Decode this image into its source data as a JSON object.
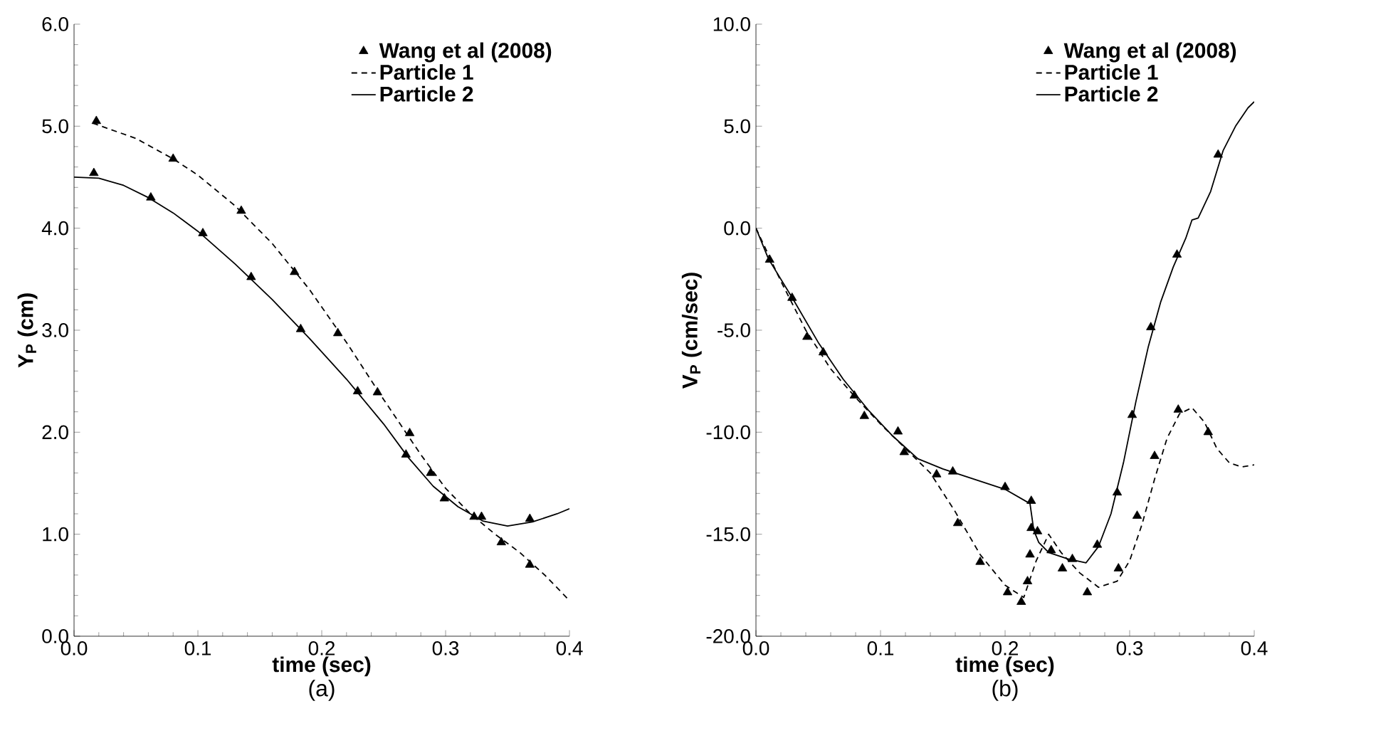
{
  "chart_data": [
    {
      "type": "line",
      "xlabel": "time (sec)",
      "ylabel": "Y$_{P}$ (cm)",
      "annotations": [
        "(a)"
      ],
      "legend": "top right",
      "grid": false,
      "xlim": [
        0,
        0.4
      ],
      "xticks": [
        {
          "value": 0,
          "label": "0.0"
        },
        {
          "value": 0.1,
          "label": "0.1"
        },
        {
          "value": 0.2,
          "label": "0.2"
        },
        {
          "value": 0.3,
          "label": "0.3"
        },
        {
          "value": 0.4,
          "label": "0.4"
        }
      ],
      "ylim": [
        0,
        6
      ],
      "yticks": [
        {
          "value": 0,
          "label": "0.0"
        },
        {
          "value": 1,
          "label": "1.0"
        },
        {
          "value": 2,
          "label": "2.0"
        },
        {
          "value": 3,
          "label": "3.0"
        },
        {
          "value": 4,
          "label": "4.0"
        },
        {
          "value": 5,
          "label": "5.0"
        },
        {
          "value": 6,
          "label": "6.0"
        }
      ],
      "series": [
        {
          "name": "Wang et al (2008)",
          "type": "scatter",
          "marker": "triangle",
          "color": "#000000",
          "x": [
            0.016,
            0.018,
            0.062,
            0.08,
            0.104,
            0.135,
            0.143,
            0.178,
            0.183,
            0.213,
            0.229,
            0.245,
            0.268,
            0.271,
            0.288,
            0.299,
            0.323,
            0.329,
            0.345,
            0.368,
            0.368
          ],
          "values": [
            4.54,
            5.05,
            4.3,
            4.68,
            3.95,
            4.17,
            3.52,
            3.57,
            3.01,
            2.97,
            2.4,
            2.39,
            1.78,
            1.99,
            1.6,
            1.35,
            1.17,
            1.17,
            0.92,
            1.15,
            0.7
          ]
        },
        {
          "name": "Particle 1",
          "type": "line",
          "line_style": "dashed",
          "color": "#000000",
          "x": [
            0.015,
            0.05,
            0.08,
            0.1,
            0.13,
            0.16,
            0.19,
            0.22,
            0.25,
            0.28,
            0.3,
            0.32,
            0.34,
            0.36,
            0.38,
            0.4
          ],
          "values": [
            5.03,
            4.88,
            4.68,
            4.52,
            4.22,
            3.85,
            3.4,
            2.88,
            2.32,
            1.78,
            1.45,
            1.2,
            1.0,
            0.82,
            0.6,
            0.35
          ]
        },
        {
          "name": "Particle 2",
          "type": "line",
          "line_style": "solid",
          "color": "#000000",
          "x": [
            0,
            0.02,
            0.04,
            0.06,
            0.08,
            0.1,
            0.13,
            0.16,
            0.19,
            0.22,
            0.25,
            0.27,
            0.29,
            0.31,
            0.33,
            0.35,
            0.37,
            0.39,
            0.4
          ],
          "values": [
            4.5,
            4.49,
            4.42,
            4.3,
            4.15,
            3.97,
            3.65,
            3.3,
            2.92,
            2.52,
            2.08,
            1.75,
            1.47,
            1.27,
            1.13,
            1.08,
            1.12,
            1.2,
            1.25
          ]
        }
      ]
    },
    {
      "type": "line",
      "xlabel": "time (sec)",
      "ylabel": "V$_{P}$ (cm/sec)",
      "annotations": [
        "(b)"
      ],
      "legend": "top right",
      "grid": false,
      "xlim": [
        0,
        0.4
      ],
      "xticks": [
        {
          "value": 0,
          "label": "0.0"
        },
        {
          "value": 0.1,
          "label": "0.1"
        },
        {
          "value": 0.2,
          "label": "0.2"
        },
        {
          "value": 0.3,
          "label": "0.3"
        },
        {
          "value": 0.4,
          "label": "0.4"
        }
      ],
      "ylim": [
        -20,
        10
      ],
      "yticks": [
        {
          "value": -20,
          "label": "-20.0"
        },
        {
          "value": -15,
          "label": "-15.0"
        },
        {
          "value": -10,
          "label": "-10.0"
        },
        {
          "value": -5,
          "label": "-5.0"
        },
        {
          "value": 0,
          "label": "0.0"
        },
        {
          "value": 5,
          "label": "5.0"
        },
        {
          "value": 10,
          "label": "10.0"
        }
      ],
      "series": [
        {
          "name": "Wang et al (2008)",
          "type": "scatter",
          "marker": "triangle",
          "color": "#000000",
          "x": [
            0.011,
            0.029,
            0.041,
            0.054,
            0.079,
            0.087,
            0.114,
            0.119,
            0.145,
            0.158,
            0.162,
            0.18,
            0.2,
            0.202,
            0.213,
            0.218,
            0.22,
            0.221,
            0.221,
            0.226,
            0.237,
            0.246,
            0.254,
            0.266,
            0.274,
            0.29,
            0.291,
            0.302,
            0.306,
            0.317,
            0.32,
            0.338,
            0.339,
            0.363,
            0.371
          ],
          "values": [
            -1.55,
            -3.42,
            -5.33,
            -6.09,
            -8.21,
            -9.21,
            -9.97,
            -10.98,
            -12.07,
            -11.93,
            -14.46,
            -16.36,
            -12.69,
            -17.85,
            -18.32,
            -17.31,
            -16.0,
            -13.37,
            -14.7,
            -14.86,
            -15.79,
            -16.68,
            -16.22,
            -17.85,
            -15.52,
            -12.96,
            -16.68,
            -9.16,
            -14.1,
            -4.86,
            -11.17,
            -1.3,
            -8.9,
            -10.0,
            3.6
          ]
        },
        {
          "name": "Particle 1",
          "type": "line",
          "line_style": "dashed",
          "color": "#000000",
          "x": [
            0,
            0.02,
            0.04,
            0.06,
            0.08,
            0.1,
            0.12,
            0.14,
            0.16,
            0.18,
            0.2,
            0.215,
            0.225,
            0.235,
            0.245,
            0.26,
            0.275,
            0.29,
            0.3,
            0.31,
            0.32,
            0.33,
            0.34,
            0.35,
            0.36,
            0.37,
            0.38,
            0.39,
            0.4
          ],
          "values": [
            0,
            -2.6,
            -5.0,
            -6.9,
            -8.3,
            -9.6,
            -10.8,
            -12.0,
            -13.9,
            -16.0,
            -17.5,
            -18.1,
            -16.3,
            -15.0,
            -15.9,
            -16.9,
            -17.6,
            -17.3,
            -16.3,
            -14.5,
            -12.3,
            -10.3,
            -9.1,
            -8.8,
            -9.5,
            -10.8,
            -11.5,
            -11.7,
            -11.6
          ]
        },
        {
          "name": "Particle 2",
          "type": "line",
          "line_style": "solid",
          "color": "#000000",
          "x": [
            0,
            0.01,
            0.03,
            0.05,
            0.07,
            0.09,
            0.11,
            0.13,
            0.15,
            0.17,
            0.2,
            0.22,
            0.223,
            0.227,
            0.235,
            0.25,
            0.265,
            0.275,
            0.285,
            0.295,
            0.305,
            0.315,
            0.325,
            0.335,
            0.345,
            0.35,
            0.355,
            0.365,
            0.375,
            0.385,
            0.395,
            0.4
          ],
          "values": [
            0,
            -1.5,
            -3.5,
            -5.6,
            -7.4,
            -8.9,
            -10.2,
            -11.3,
            -11.8,
            -12.2,
            -12.8,
            -13.5,
            -14.8,
            -15.4,
            -15.9,
            -16.2,
            -16.4,
            -15.6,
            -14.0,
            -11.5,
            -8.5,
            -5.8,
            -3.6,
            -1.9,
            -0.5,
            0.4,
            0.5,
            1.8,
            3.8,
            5.0,
            5.9,
            6.2
          ]
        }
      ]
    }
  ]
}
